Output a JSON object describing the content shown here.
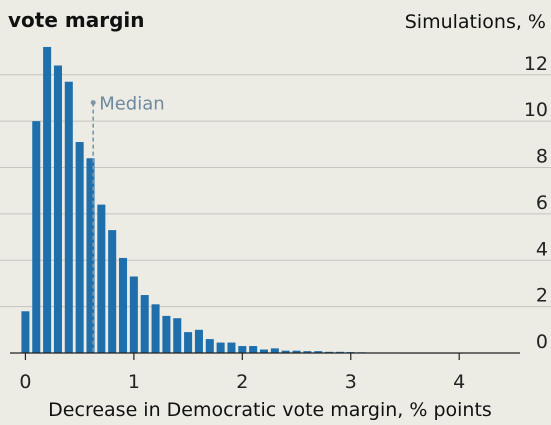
{
  "chart_data": {
    "type": "bar",
    "title": "vote margin",
    "ylabel": "Simulations, %",
    "xlabel": "Decrease in Democratic vote margin, % points",
    "ylim": [
      0,
      13.5
    ],
    "xlim": [
      -0.05,
      4.45
    ],
    "bin_width": 0.1,
    "y_ticks": [
      0,
      2,
      4,
      6,
      8,
      10,
      12
    ],
    "x_ticks": [
      0,
      1,
      2,
      3,
      4
    ],
    "grid": true,
    "bar_color": "#1f6fad",
    "median": {
      "label": "Median",
      "x": 0.625,
      "color": "#7f96a8"
    },
    "x": [
      0.0,
      0.1,
      0.2,
      0.3,
      0.4,
      0.5,
      0.6,
      0.7,
      0.8,
      0.9,
      1.0,
      1.1,
      1.2,
      1.3,
      1.4,
      1.5,
      1.6,
      1.7,
      1.8,
      1.9,
      2.0,
      2.1,
      2.2,
      2.3,
      2.4,
      2.5,
      2.6,
      2.7,
      2.8,
      2.9,
      3.0,
      3.1,
      3.2,
      3.3,
      3.4,
      3.5,
      3.6,
      3.7,
      3.8,
      3.9,
      4.0
    ],
    "values": [
      1.8,
      10.0,
      13.2,
      12.4,
      11.7,
      9.1,
      8.4,
      6.4,
      5.3,
      4.1,
      3.3,
      2.5,
      2.1,
      1.6,
      1.5,
      0.9,
      1.0,
      0.6,
      0.45,
      0.45,
      0.3,
      0.3,
      0.15,
      0.2,
      0.1,
      0.1,
      0.08,
      0.08,
      0.05,
      0.05,
      0.04,
      0.03,
      0.02,
      0.02,
      0.02,
      0.01,
      0.01,
      0.01,
      0.01,
      0.01,
      0.01
    ]
  }
}
